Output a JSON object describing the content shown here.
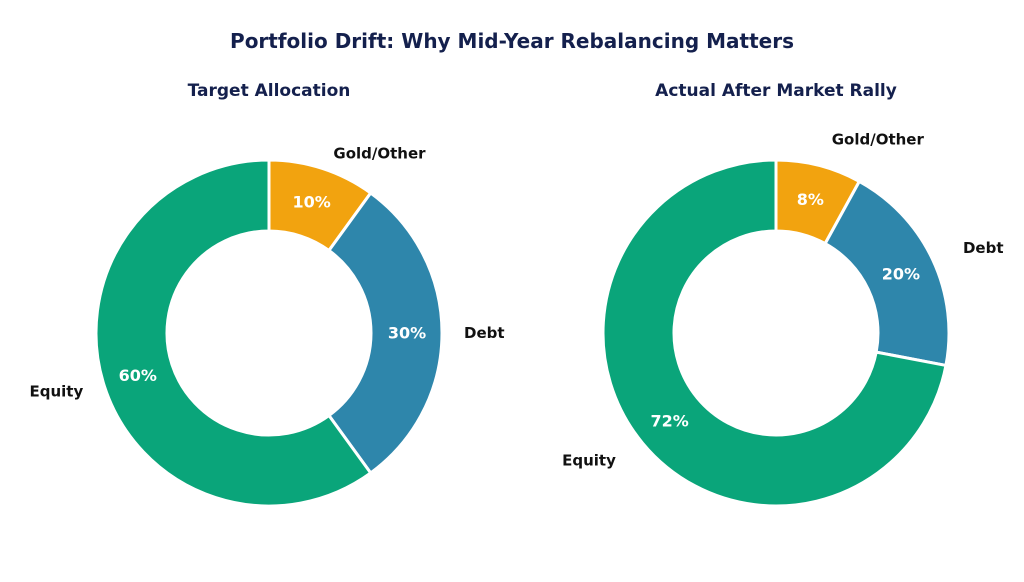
{
  "chart_data": {
    "title": "Portfolio Drift: Why Mid-Year Rebalancing Matters",
    "title_color": "#14204d",
    "charts": [
      {
        "type": "pie",
        "style": "donut",
        "title": "Target Allocation",
        "categories": [
          "Gold/Other",
          "Debt",
          "Equity"
        ],
        "values": [
          10,
          30,
          60
        ],
        "labels": [
          "10%",
          "30%",
          "60%"
        ],
        "colors": [
          "#f2a30f",
          "#2e86ab",
          "#0aa57a"
        ]
      },
      {
        "type": "pie",
        "style": "donut",
        "title": "Actual After Market Rally",
        "categories": [
          "Gold/Other",
          "Debt",
          "Equity"
        ],
        "values": [
          8,
          20,
          72
        ],
        "labels": [
          "8%",
          "20%",
          "72%"
        ],
        "colors": [
          "#f2a30f",
          "#2e86ab",
          "#0aa57a"
        ]
      }
    ]
  }
}
